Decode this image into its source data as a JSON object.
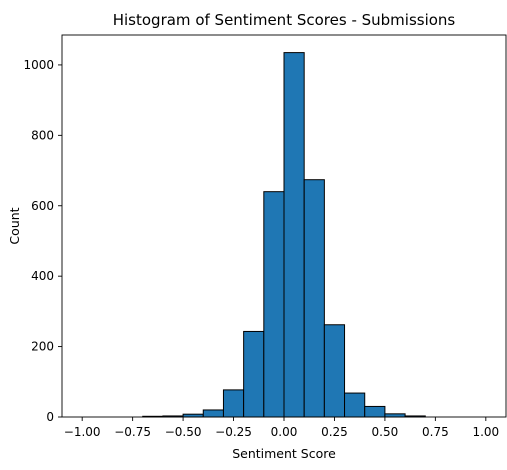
{
  "chart_data": {
    "type": "bar",
    "title": "Histogram of Sentiment Scores - Submissions",
    "xlabel": "Sentiment Score",
    "ylabel": "Count",
    "xlim": [
      -1.1,
      1.1
    ],
    "ylim": [
      0,
      1085
    ],
    "x_ticks": [
      -1.0,
      -0.75,
      -0.5,
      -0.25,
      0.0,
      0.25,
      0.5,
      0.75,
      1.0
    ],
    "x_tick_labels": [
      "−1.00",
      "−0.75",
      "−0.50",
      "−0.25",
      "0.00",
      "0.25",
      "0.50",
      "0.75",
      "1.00"
    ],
    "y_ticks": [
      0,
      200,
      400,
      600,
      800,
      1000
    ],
    "y_tick_labels": [
      "0",
      "200",
      "400",
      "600",
      "800",
      "1000"
    ],
    "bin_edges": [
      -1.0,
      -0.9,
      -0.8,
      -0.7,
      -0.6,
      -0.5,
      -0.4,
      -0.3,
      -0.2,
      -0.1,
      0.0,
      0.1,
      0.2,
      0.3,
      0.4,
      0.5,
      0.6,
      0.7,
      0.8,
      0.9,
      1.0
    ],
    "values": [
      0,
      0,
      0,
      2,
      3,
      8,
      20,
      77,
      243,
      640,
      1035,
      674,
      262,
      68,
      30,
      9,
      3,
      0,
      0,
      0
    ],
    "bar_color": "#1f77b4",
    "edge_color": "#000000",
    "grid": false,
    "legend": "none"
  }
}
